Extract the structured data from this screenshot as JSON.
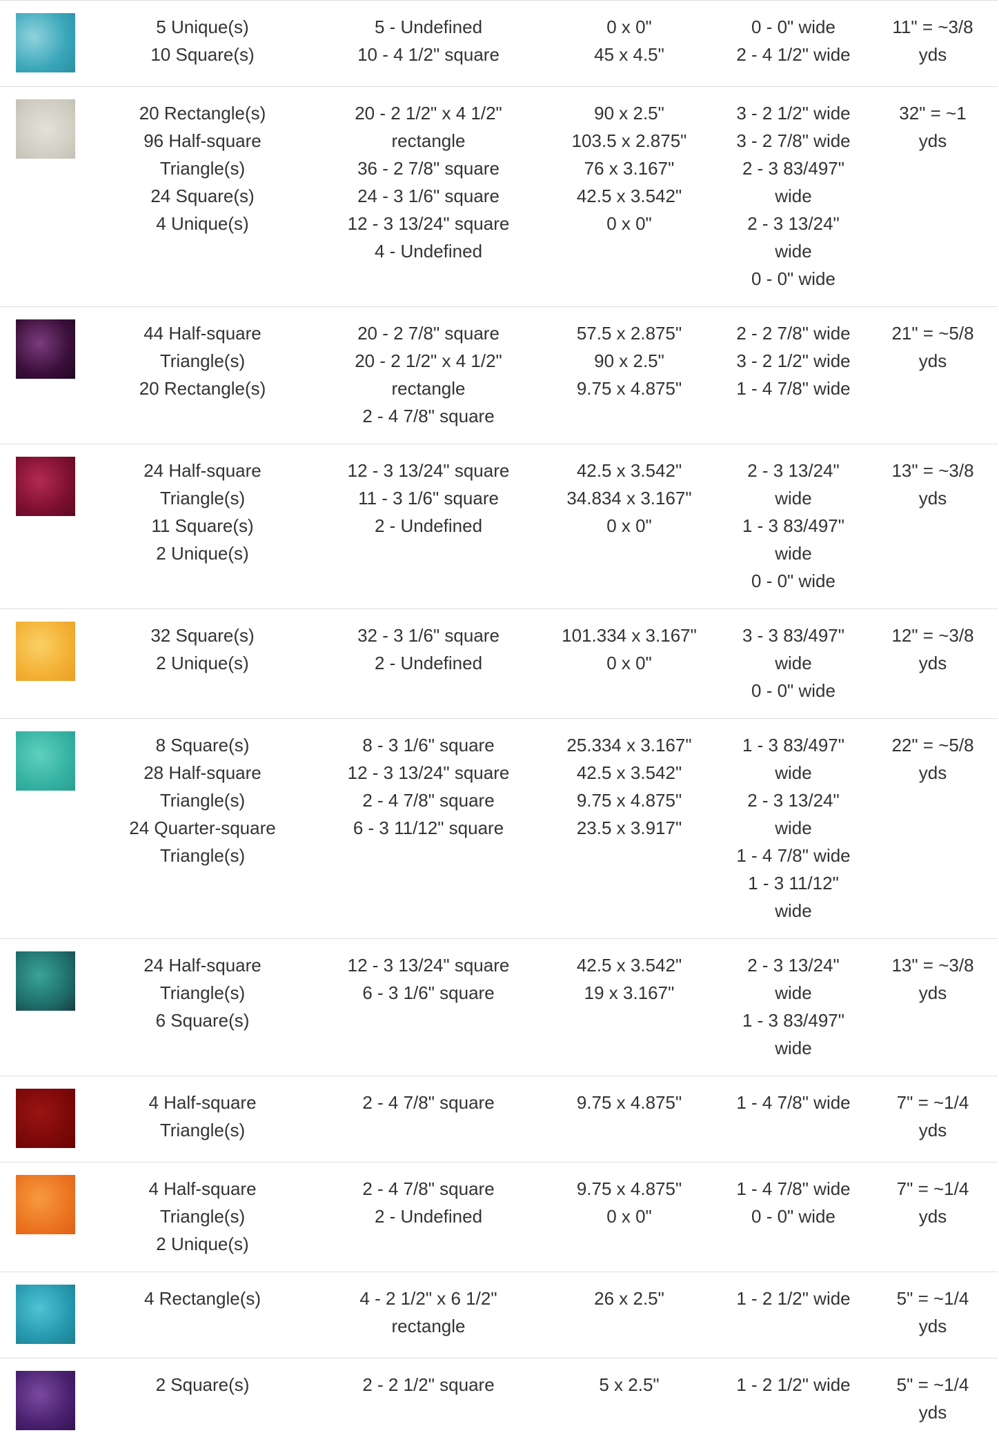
{
  "table": {
    "rows": [
      {
        "shapes": [
          "5 Unique(s)",
          "10 Square(s)"
        ],
        "cuts": [
          "5 - Undefined",
          "10 - 4 1/2\" square"
        ],
        "strips": [
          "0 x 0\"",
          "45 x 4.5\""
        ],
        "widths": [
          "0 - 0\" wide",
          "2 - 4 1/2\" wide"
        ],
        "yardage": "11\" = ~3/8 yds"
      },
      {
        "shapes": [
          "20 Rectangle(s)",
          "96 Half-square Triangle(s)",
          "24 Square(s)",
          "4 Unique(s)"
        ],
        "cuts": [
          "20 - 2 1/2\" x 4 1/2\" rectangle",
          "36 - 2 7/8\" square",
          "24 - 3 1/6\" square",
          "12 - 3 13/24\" square",
          "4 - Undefined"
        ],
        "strips": [
          "90 x 2.5\"",
          "103.5 x 2.875\"",
          "76 x 3.167\"",
          "42.5 x 3.542\"",
          "0 x 0\""
        ],
        "widths": [
          "3 - 2 1/2\" wide",
          "3 - 2 7/8\" wide",
          "2 - 3 83/497\" wide",
          "2 - 3 13/24\" wide",
          "0 - 0\" wide"
        ],
        "yardage": "32\" = ~1 yds"
      },
      {
        "shapes": [
          "44 Half-square Triangle(s)",
          "20 Rectangle(s)"
        ],
        "cuts": [
          "20 - 2 7/8\" square",
          "20 - 2 1/2\" x 4 1/2\" rectangle",
          "2 - 4 7/8\" square"
        ],
        "strips": [
          "57.5 x 2.875\"",
          "90 x 2.5\"",
          "9.75 x 4.875\""
        ],
        "widths": [
          "2 - 2 7/8\" wide",
          "3 - 2 1/2\" wide",
          "1 - 4 7/8\" wide"
        ],
        "yardage": "21\" = ~5/8 yds"
      },
      {
        "shapes": [
          "24 Half-square Triangle(s)",
          "11 Square(s)",
          "2 Unique(s)"
        ],
        "cuts": [
          "12 - 3 13/24\" square",
          "11 - 3 1/6\" square",
          "2 - Undefined"
        ],
        "strips": [
          "42.5 x 3.542\"",
          "34.834 x 3.167\"",
          "0 x 0\""
        ],
        "widths": [
          "2 - 3 13/24\" wide",
          "1 - 3 83/497\" wide",
          "0 - 0\" wide"
        ],
        "yardage": "13\" = ~3/8 yds"
      },
      {
        "shapes": [
          "32 Square(s)",
          "2 Unique(s)"
        ],
        "cuts": [
          "32 - 3 1/6\" square",
          "2 - Undefined"
        ],
        "strips": [
          "101.334 x 3.167\"",
          "0 x 0\""
        ],
        "widths": [
          "3 - 3 83/497\" wide",
          "0 - 0\" wide"
        ],
        "yardage": "12\" = ~3/8 yds"
      },
      {
        "shapes": [
          "8 Square(s)",
          "28 Half-square Triangle(s)",
          "24 Quarter-square Triangle(s)"
        ],
        "cuts": [
          "8 - 3 1/6\" square",
          "12 - 3 13/24\" square",
          "2 - 4 7/8\" square",
          "6 - 3 11/12\" square"
        ],
        "strips": [
          "25.334 x 3.167\"",
          "42.5 x 3.542\"",
          "9.75 x 4.875\"",
          "23.5 x 3.917\""
        ],
        "widths": [
          "1 - 3 83/497\" wide",
          "2 - 3 13/24\" wide",
          "1 - 4 7/8\" wide",
          "1 - 3 11/12\" wide"
        ],
        "yardage": "22\" = ~5/8 yds"
      },
      {
        "shapes": [
          "24 Half-square Triangle(s)",
          "6 Square(s)"
        ],
        "cuts": [
          "12 - 3 13/24\" square",
          "6 - 3 1/6\" square"
        ],
        "strips": [
          "42.5 x 3.542\"",
          "19 x 3.167\""
        ],
        "widths": [
          "2 - 3 13/24\" wide",
          "1 - 3 83/497\" wide"
        ],
        "yardage": "13\" = ~3/8 yds"
      },
      {
        "shapes": [
          "4 Half-square Triangle(s)"
        ],
        "cuts": [
          "2 - 4 7/8\" square"
        ],
        "strips": [
          "9.75 x 4.875\""
        ],
        "widths": [
          "1 - 4 7/8\" wide"
        ],
        "yardage": "7\" = ~1/4 yds"
      },
      {
        "shapes": [
          "4 Half-square Triangle(s)",
          "2 Unique(s)"
        ],
        "cuts": [
          "2 - 4 7/8\" square",
          "2 - Undefined"
        ],
        "strips": [
          "9.75 x 4.875\"",
          "0 x 0\""
        ],
        "widths": [
          "1 - 4 7/8\" wide",
          "0 - 0\" wide"
        ],
        "yardage": "7\" = ~1/4 yds"
      },
      {
        "shapes": [
          "4 Rectangle(s)"
        ],
        "cuts": [
          "4 - 2 1/2\" x 6 1/2\" rectangle"
        ],
        "strips": [
          "26 x 2.5\""
        ],
        "widths": [
          "1 - 2 1/2\" wide"
        ],
        "yardage": "5\" = ~1/4 yds"
      },
      {
        "shapes": [
          "2 Square(s)"
        ],
        "cuts": [
          "2 - 2 1/2\" square"
        ],
        "strips": [
          "5 x 2.5\""
        ],
        "widths": [
          "1 - 2 1/2\" wide"
        ],
        "yardage": "5\" = ~1/4 yds"
      }
    ]
  }
}
